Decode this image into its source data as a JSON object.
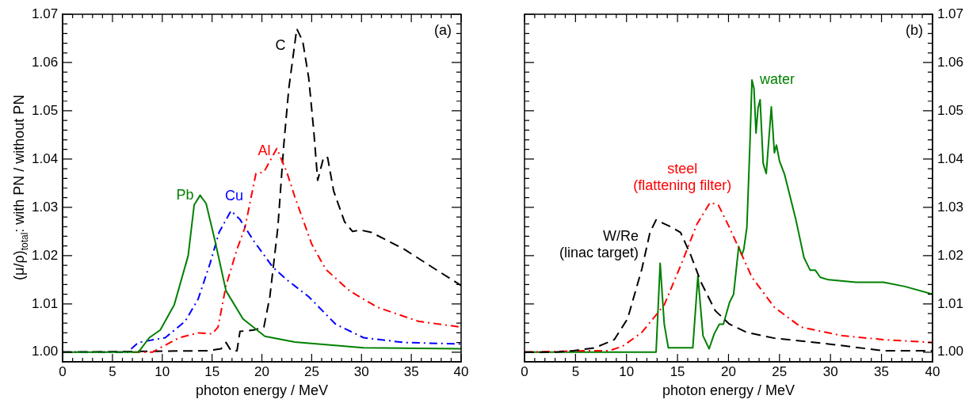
{
  "chart_data": [
    {
      "type": "line",
      "xlabel": "photon energy / MeV",
      "ylabel": "(μ/ρ)$_{total}$: with PN / without PN",
      "annotations": [
        "(a)"
      ],
      "xlim": [
        0,
        40
      ],
      "xticks": [
        0,
        5,
        10,
        15,
        20,
        25,
        30,
        35,
        40
      ],
      "ylim": [
        0.998,
        1.07
      ],
      "yticks": [
        {
          "value": 1.0,
          "label": "1.00"
        },
        1.01,
        1.02,
        1.03,
        1.04,
        1.05,
        1.06,
        1.07
      ],
      "grid": false,
      "marker": "none",
      "series": [
        {
          "name": "Pb",
          "color": "#008000",
          "line_style": "solid",
          "x": [
            0,
            7.6,
            8.7,
            9.8,
            11.2,
            12.6,
            13.2,
            13.8,
            14.4,
            15.3,
            16.4,
            18.1,
            19.8,
            20.3,
            23.3,
            30.2,
            40
          ],
          "values": [
            1.0,
            1.0,
            1.003,
            1.0046,
            1.0098,
            1.02,
            1.0305,
            1.0325,
            1.0308,
            1.023,
            1.0127,
            1.0069,
            1.0041,
            1.0033,
            1.0021,
            1.0009,
            1.0007
          ]
        },
        {
          "name": "Cu",
          "color": "#0000ff",
          "line_style": "dashdot",
          "x": [
            0,
            6.5,
            7.6,
            10.3,
            12.3,
            13.6,
            14.8,
            15.7,
            16.9,
            17.8,
            19.2,
            21.1,
            22.5,
            24.7,
            27.4,
            30.2,
            34.3,
            40
          ],
          "values": [
            1.0,
            1.0,
            1.002,
            1.003,
            1.0064,
            1.011,
            1.0184,
            1.0248,
            1.0293,
            1.0275,
            1.023,
            1.0176,
            1.015,
            1.0115,
            1.0058,
            1.003,
            1.002,
            1.0017
          ]
        },
        {
          "name": "Al",
          "color": "#ff0000",
          "line_style": "dashdot",
          "x": [
            0,
            9,
            11.7,
            13.6,
            15,
            15.6,
            16.4,
            17.5,
            18.3,
            19.4,
            20.2,
            21.5,
            22.5,
            23.3,
            25,
            26.4,
            28.8,
            31.6,
            35.7,
            40
          ],
          "values": [
            1.0,
            1.0,
            1.003,
            1.004,
            1.0038,
            1.0052,
            1.0138,
            1.0213,
            1.0258,
            1.037,
            1.0373,
            1.0422,
            1.0373,
            1.0322,
            1.0224,
            1.0172,
            1.0127,
            1.0093,
            1.0064,
            1.0052
          ]
        },
        {
          "name": "C",
          "color": "#000000",
          "line_style": "dashed",
          "x": [
            0,
            14.5,
            15.9,
            16.4,
            16.9,
            17.5,
            17.8,
            19.2,
            20.2,
            20.8,
            21.6,
            22.2,
            22.7,
            23.5,
            24.1,
            24.7,
            25.2,
            25.6,
            26.2,
            26.6,
            27.2,
            28.3,
            29.1,
            29.9,
            31,
            34.3,
            37.1,
            40
          ],
          "values": [
            1.0,
            1.0003,
            1.0007,
            1.002,
            1.0003,
            1.0003,
            1.0043,
            1.0046,
            1.0052,
            1.0115,
            1.0258,
            1.043,
            1.0546,
            1.067,
            1.0644,
            1.0568,
            1.046,
            1.0356,
            1.0404,
            1.0403,
            1.0334,
            1.027,
            1.025,
            1.0253,
            1.0248,
            1.0213,
            1.0176,
            1.0138
          ]
        }
      ]
    },
    {
      "type": "line",
      "xlabel": "photon energy / MeV",
      "annotations": [
        "(b)"
      ],
      "xlim": [
        0,
        40
      ],
      "xticks": [
        0,
        5,
        10,
        15,
        20,
        25,
        30,
        35,
        40
      ],
      "y2lim": [
        0.998,
        1.07
      ],
      "y2ticks": [
        {
          "value": 1.0,
          "label": "1.00"
        },
        1.01,
        1.02,
        1.03,
        1.04,
        1.05,
        1.06,
        1.07
      ],
      "grid": false,
      "marker": "none",
      "series": [
        {
          "name": "W/Re\n(linac target)",
          "color": "#000000",
          "line_style": "dashed",
          "axis": "y2",
          "x": [
            0,
            3,
            4.8,
            6.9,
            8.8,
            10.1,
            11.5,
            12.3,
            12.9,
            14.5,
            15.3,
            16.3,
            17.3,
            18.7,
            20.1,
            21.8,
            24.5,
            29.8,
            35.2,
            40
          ],
          "values": [
            1.0,
            1.0,
            1.0003,
            1.0009,
            1.0026,
            1.0069,
            1.0172,
            1.0248,
            1.0274,
            1.0258,
            1.0248,
            1.0201,
            1.0145,
            1.0086,
            1.0058,
            1.0041,
            1.0029,
            1.0017,
            1.0003,
            1.0003
          ]
        },
        {
          "name": "steel\n(flattening filter)",
          "color": "#ff0000",
          "line_style": "dashdot",
          "axis": "y2",
          "x": [
            0,
            6.1,
            8.3,
            9.6,
            11.5,
            13.7,
            15.5,
            16.9,
            18.2,
            19,
            20.1,
            20.7,
            22.3,
            24.5,
            27.1,
            31.2,
            35.2,
            40
          ],
          "values": [
            1.0,
            1.0003,
            1.0003,
            1.0012,
            1.0041,
            1.0098,
            1.0189,
            1.0265,
            1.031,
            1.0305,
            1.0258,
            1.023,
            1.0155,
            1.0093,
            1.0052,
            1.0034,
            1.0026,
            1.002
          ]
        },
        {
          "name": "water",
          "color": "#008000",
          "line_style": "solid",
          "axis": "y2",
          "x": [
            0,
            12.9,
            13.3,
            13.7,
            14.1,
            16.5,
            17,
            17.5,
            18.1,
            18.6,
            19.1,
            19.5,
            20.1,
            20.5,
            21,
            21.3,
            21.5,
            21.8,
            22.1,
            22.3,
            22.5,
            22.7,
            22.9,
            23.1,
            23.4,
            23.7,
            24.2,
            24.5,
            24.7,
            25,
            25.5,
            26.6,
            27.4,
            28,
            28.5,
            29,
            29.8,
            32.5,
            35.2,
            37.3,
            40
          ],
          "values": [
            1.0,
            1.0,
            1.0184,
            1.0058,
            1.0009,
            1.0009,
            1.0158,
            1.0034,
            1.0007,
            1.0038,
            1.0058,
            1.0058,
            1.0103,
            1.012,
            1.0219,
            1.0201,
            1.0213,
            1.0258,
            1.043,
            1.0564,
            1.0546,
            1.0454,
            1.0506,
            1.0523,
            1.0391,
            1.037,
            1.0508,
            1.0413,
            1.0429,
            1.0396,
            1.0368,
            1.0275,
            1.0196,
            1.017,
            1.017,
            1.0155,
            1.015,
            1.0145,
            1.0145,
            1.0136,
            1.012
          ]
        }
      ]
    }
  ]
}
